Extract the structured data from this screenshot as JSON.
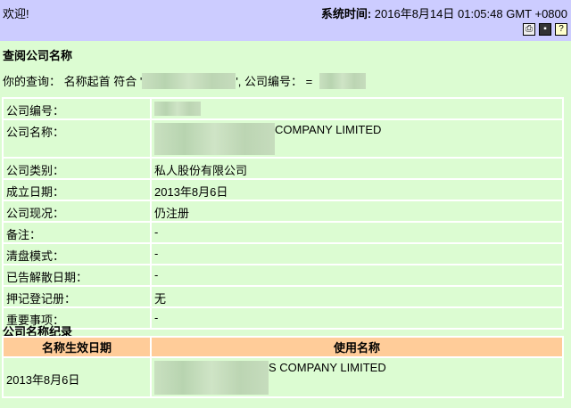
{
  "header": {
    "welcome": "欢迎!",
    "time_label": "系统时间:",
    "time_value": "2016年8月14日 01:05:48 GMT +0800",
    "icons": [
      "print-icon",
      "save-icon",
      "help-icon"
    ]
  },
  "page_title": "查阅公司名称",
  "query": {
    "prefix": "你的查询： 名称起首 符合 '",
    "mid": "', 公司编号： ="
  },
  "details": [
    {
      "label": "公司编号：",
      "value": ""
    },
    {
      "label": "公司名称：",
      "value": "COMPANY LIMITED"
    },
    {
      "label": "公司类别：",
      "value": "私人股份有限公司"
    },
    {
      "label": "成立日期：",
      "value": "2013年8月6日"
    },
    {
      "label": "公司现况：",
      "value": "仍注册"
    },
    {
      "label": "备注：",
      "value": "-"
    },
    {
      "label": "清盘模式：",
      "value": "-"
    },
    {
      "label": "已告解散日期：",
      "value": "-"
    },
    {
      "label": "押记登记册：",
      "value": "无"
    },
    {
      "label": "重要事项：",
      "value": "-"
    }
  ],
  "history": {
    "title": "公司名称纪录",
    "headers": [
      "名称生效日期",
      "使用名称"
    ],
    "rows": [
      {
        "date": "2013年8月6日",
        "name": "S COMPANY LIMITED"
      }
    ]
  }
}
